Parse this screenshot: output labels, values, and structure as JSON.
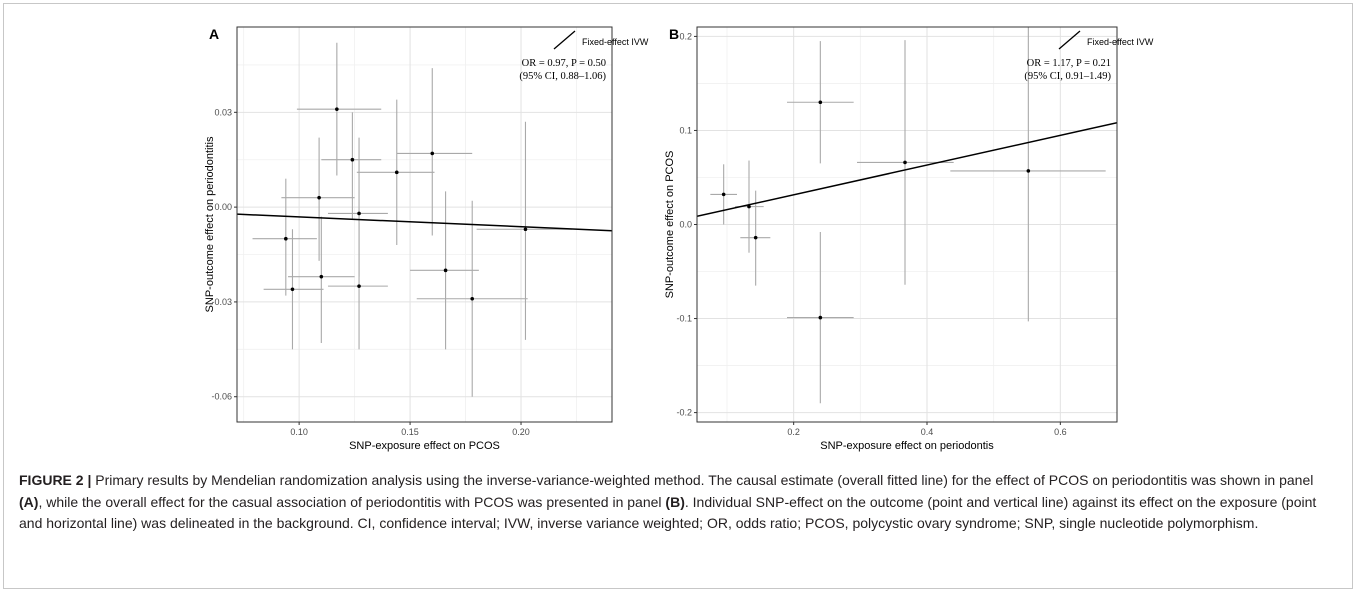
{
  "caption": {
    "label": "FIGURE 2 |",
    "parts": [
      {
        "t": " Primary results by Mendelian randomization analysis using the inverse-variance-weighted method. The causal estimate (overall fitted line) for the effect of PCOS on periodontitis was shown in panel ",
        "b": false
      },
      {
        "t": "(A)",
        "b": true
      },
      {
        "t": ", while the overall effect for the casual association of periodontitis with PCOS was presented in panel ",
        "b": false
      },
      {
        "t": "(B)",
        "b": true
      },
      {
        "t": ". Individual SNP-effect on the outcome (point and vertical line) against its effect on the exposure (point and horizontal line) was delineated in the background. CI, confidence interval; IVW, inverse variance weighted; OR, odds ratio; PCOS, polycystic ovary syndrome; SNP, single nucleotide polymorphism.",
        "b": false
      }
    ]
  },
  "chart_data": [
    {
      "type": "scatter",
      "panel": "A",
      "xlabel": "SNP-exposure effect on PCOS",
      "ylabel": "SNP-outcome effect on periodontitis",
      "xlim": [
        0.072,
        0.241
      ],
      "ylim": [
        -0.068,
        0.057
      ],
      "xticks": [
        0.1,
        0.15,
        0.2
      ],
      "xtick_labels": [
        "0.10",
        "0.15",
        "0.20"
      ],
      "yticks": [
        -0.06,
        -0.03,
        0.0,
        0.03
      ],
      "ytick_labels": [
        "-0.06",
        "-0.03",
        "0.00",
        "0.03"
      ],
      "grid": true,
      "legend": {
        "label": "Fixed-effect IVW",
        "placement": "top-right"
      },
      "annotation": [
        "OR = 0.97, P = 0.50",
        "(95% CI, 0.88–1.06)"
      ],
      "fitted_line": {
        "slope": -0.031,
        "intercept": 0.0
      },
      "points": [
        {
          "x": 0.117,
          "y": 0.031,
          "xlo": 0.099,
          "xhi": 0.137,
          "ylo": 0.01,
          "yhi": 0.052
        },
        {
          "x": 0.124,
          "y": 0.015,
          "xlo": 0.11,
          "xhi": 0.137,
          "ylo": -0.004,
          "yhi": 0.03
        },
        {
          "x": 0.109,
          "y": 0.003,
          "xlo": 0.092,
          "xhi": 0.125,
          "ylo": -0.017,
          "yhi": 0.022
        },
        {
          "x": 0.144,
          "y": 0.011,
          "xlo": 0.126,
          "xhi": 0.161,
          "ylo": -0.012,
          "yhi": 0.034
        },
        {
          "x": 0.16,
          "y": 0.017,
          "xlo": 0.144,
          "xhi": 0.178,
          "ylo": -0.009,
          "yhi": 0.044
        },
        {
          "x": 0.127,
          "y": -0.002,
          "xlo": 0.113,
          "xhi": 0.14,
          "ylo": -0.022,
          "yhi": 0.022
        },
        {
          "x": 0.094,
          "y": -0.01,
          "xlo": 0.079,
          "xhi": 0.108,
          "ylo": -0.028,
          "yhi": 0.009
        },
        {
          "x": 0.11,
          "y": -0.022,
          "xlo": 0.095,
          "xhi": 0.125,
          "ylo": -0.043,
          "yhi": -0.003
        },
        {
          "x": 0.097,
          "y": -0.026,
          "xlo": 0.084,
          "xhi": 0.111,
          "ylo": -0.045,
          "yhi": -0.007
        },
        {
          "x": 0.127,
          "y": -0.025,
          "xlo": 0.113,
          "xhi": 0.14,
          "ylo": -0.045,
          "yhi": -0.005
        },
        {
          "x": 0.166,
          "y": -0.02,
          "xlo": 0.15,
          "xhi": 0.181,
          "ylo": -0.045,
          "yhi": 0.005
        },
        {
          "x": 0.178,
          "y": -0.029,
          "xlo": 0.153,
          "xhi": 0.203,
          "ylo": -0.06,
          "yhi": 0.002
        },
        {
          "x": 0.202,
          "y": -0.007,
          "xlo": 0.18,
          "xhi": 0.223,
          "ylo": -0.042,
          "yhi": 0.027
        }
      ]
    },
    {
      "type": "scatter",
      "panel": "B",
      "xlabel": "SNP-exposure effect on periodontis",
      "ylabel": "SNP-outcome effect on PCOS",
      "xlim": [
        0.055,
        0.685
      ],
      "ylim": [
        -0.21,
        0.21
      ],
      "xticks": [
        0.2,
        0.4,
        0.6
      ],
      "xtick_labels": [
        "0.2",
        "0.4",
        "0.6"
      ],
      "yticks": [
        -0.2,
        -0.1,
        0.0,
        0.1,
        0.2
      ],
      "ytick_labels": [
        "-0.2",
        "-0.1",
        "0.0",
        "0.1",
        "0.2"
      ],
      "grid": true,
      "legend": {
        "label": "Fixed-effect IVW",
        "placement": "top-right"
      },
      "annotation": [
        "OR = 1.17, P = 0.21",
        "(95% CI, 0.91–1.49)"
      ],
      "fitted_line": {
        "slope": 0.158,
        "intercept": 0.0
      },
      "points": [
        {
          "x": 0.095,
          "y": 0.032,
          "xlo": 0.075,
          "xhi": 0.115,
          "ylo": 0.0,
          "yhi": 0.064
        },
        {
          "x": 0.133,
          "y": 0.019,
          "xlo": 0.112,
          "xhi": 0.155,
          "ylo": -0.03,
          "yhi": 0.068
        },
        {
          "x": 0.143,
          "y": -0.014,
          "xlo": 0.12,
          "xhi": 0.165,
          "ylo": -0.065,
          "yhi": 0.036
        },
        {
          "x": 0.24,
          "y": 0.13,
          "xlo": 0.19,
          "xhi": 0.29,
          "ylo": 0.065,
          "yhi": 0.195
        },
        {
          "x": 0.24,
          "y": -0.099,
          "xlo": 0.19,
          "xhi": 0.29,
          "ylo": -0.19,
          "yhi": -0.008
        },
        {
          "x": 0.367,
          "y": 0.066,
          "xlo": 0.295,
          "xhi": 0.44,
          "ylo": -0.064,
          "yhi": 0.196
        },
        {
          "x": 0.552,
          "y": 0.057,
          "xlo": 0.435,
          "xhi": 0.668,
          "ylo": -0.103,
          "yhi": 0.217
        }
      ]
    }
  ]
}
